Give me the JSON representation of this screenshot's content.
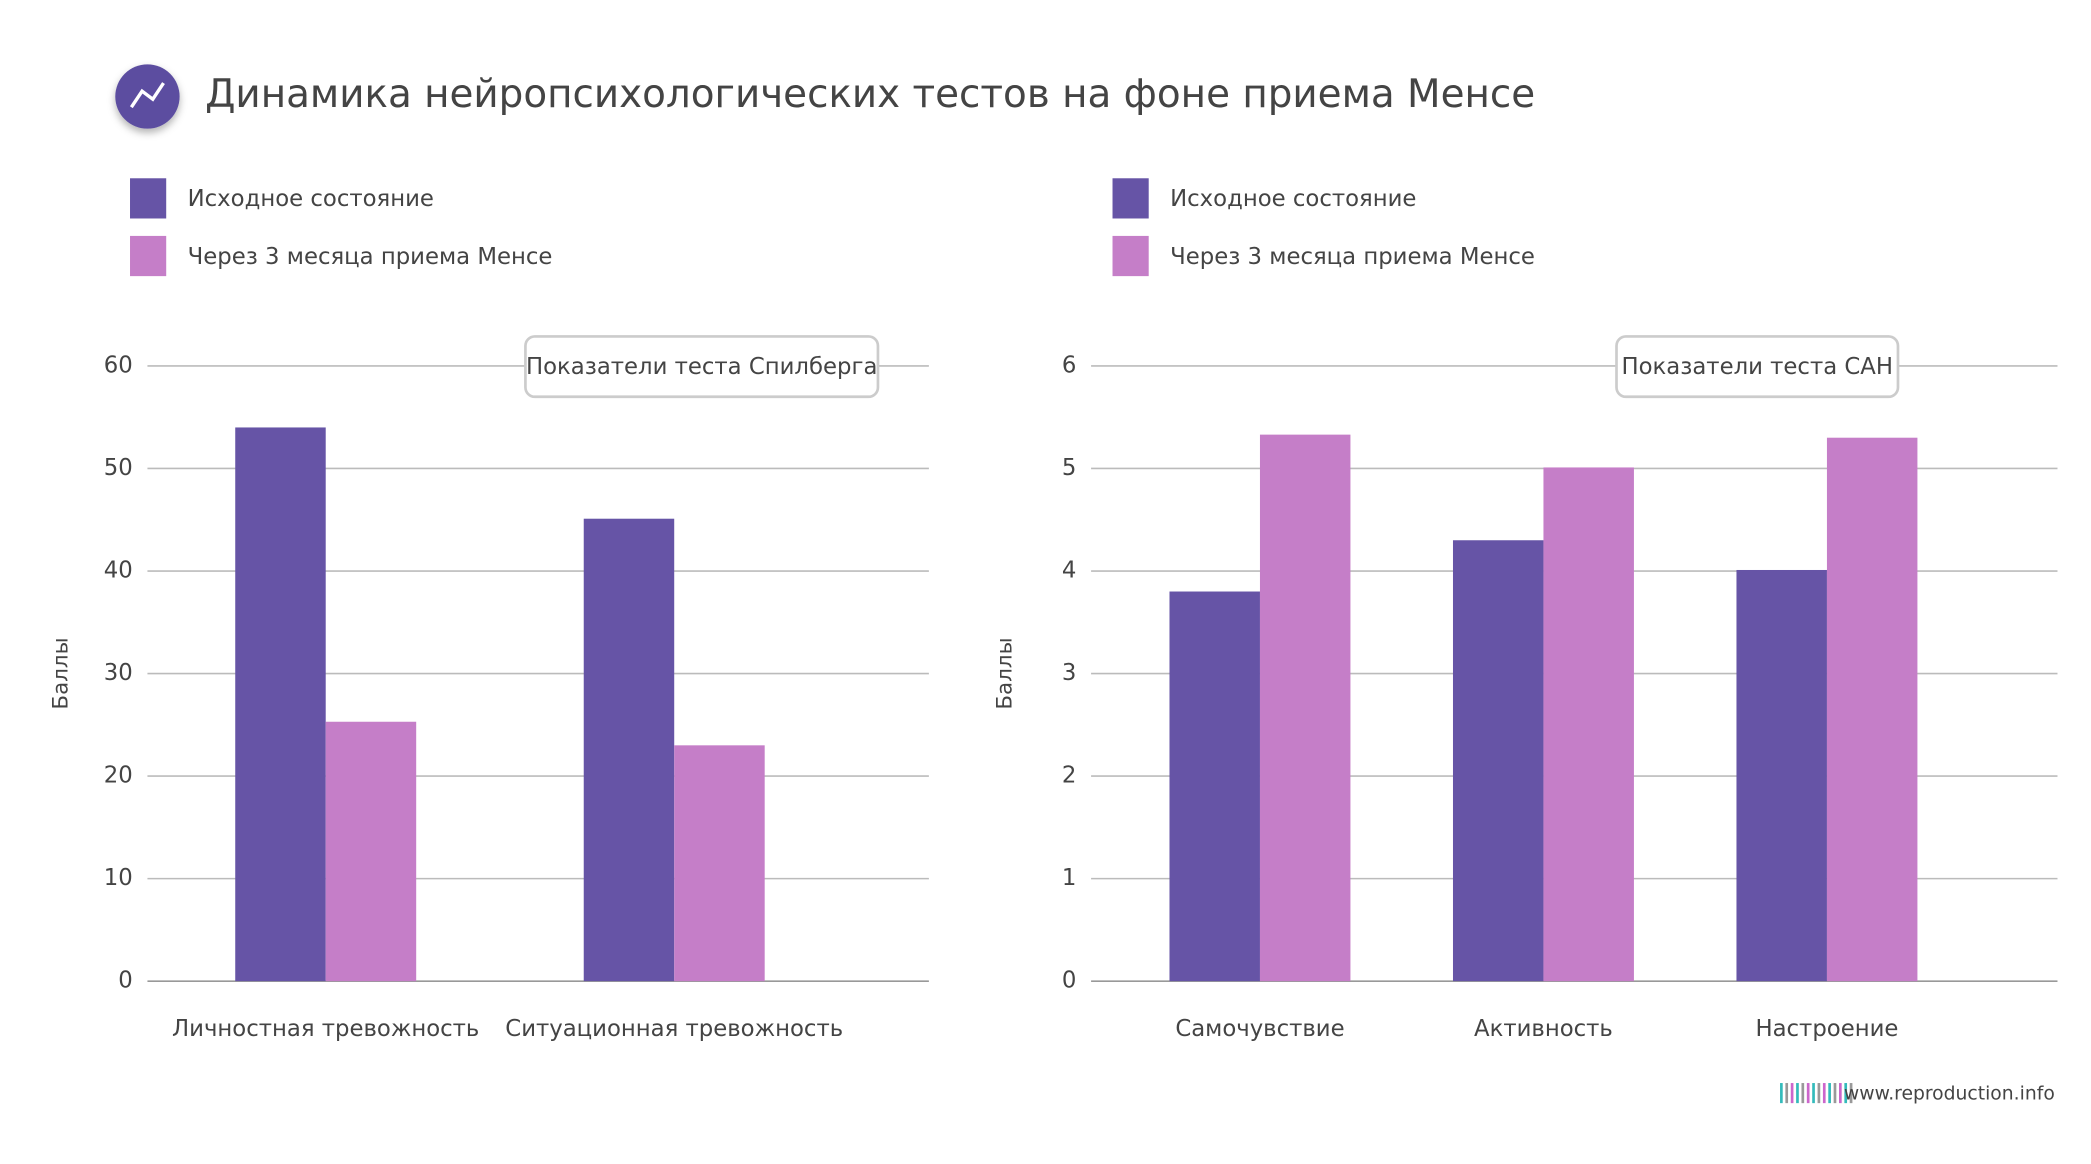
{
  "header": {
    "title": "Динамика нейропсихологических тестов на фоне приема Менсе"
  },
  "footer": "www.reproduction.info",
  "chart_data": [
    {
      "type": "bar",
      "annotation": "Показатели теста Спилберга",
      "ylabel": "Баллы",
      "categories": [
        "Личностная тревожность",
        "Ситуационная тревожность"
      ],
      "series": [
        {
          "name": "Исходное состояние",
          "color": "#6654a6",
          "values": [
            54,
            45.1
          ]
        },
        {
          "name": "Через 3 месяца приема Менсе",
          "color": "#c57ec8",
          "values": [
            25.3,
            23
          ]
        }
      ],
      "ylim": [
        0,
        60
      ],
      "yticks": [
        0,
        10,
        20,
        30,
        40,
        50,
        60
      ],
      "grid": true
    },
    {
      "type": "bar",
      "annotation": "Показатели теста САН",
      "ylabel": "Баллы",
      "categories": [
        "Самочувствие",
        "Активность",
        "Настроение"
      ],
      "series": [
        {
          "name": "Исходное состояние",
          "color": "#6654a6",
          "values": [
            3.8,
            4.3,
            4.01
          ]
        },
        {
          "name": "Через 3 месяца приема Менсе",
          "color": "#c57ec8",
          "values": [
            5.33,
            5.01,
            5.3
          ]
        }
      ],
      "ylim": [
        0,
        6
      ],
      "yticks": [
        0,
        1,
        2,
        3,
        4,
        5,
        6
      ],
      "grid": true
    }
  ]
}
